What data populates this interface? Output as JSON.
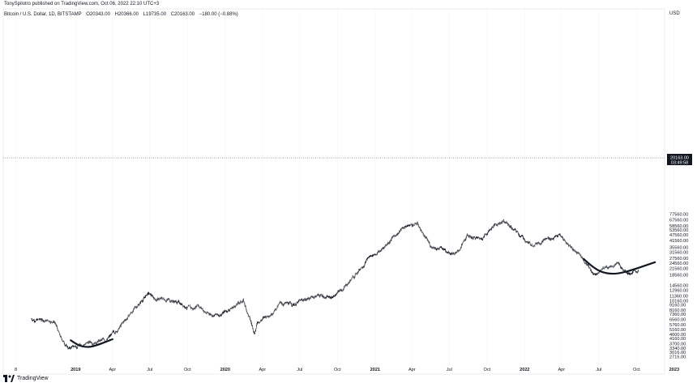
{
  "header": {
    "publisher_line": "TonySpilotro published on TradingView.com, Oct 06, 2022 22:10 UTC+3"
  },
  "symbol": {
    "name": "Bitcoin / U.S. Dollar, 1D, BITSTAMP",
    "open": "O20343.00",
    "high": "H20366.00",
    "low": "L19735.00",
    "close": "C20163.00",
    "change": "−180.00 (−0.88%)"
  },
  "footer": {
    "brand": "TradingView"
  },
  "colors": {
    "line": "#131722",
    "axis_text": "#131722",
    "grid": "#f0f3fa",
    "price_line": "#787b86"
  },
  "chart_data": {
    "type": "line",
    "title": "",
    "ylabel": "USD",
    "y_scale": "log",
    "ylim": [
      2500,
      85000
    ],
    "y_ticks": [
      "77560.00",
      "67560.00",
      "58560.00",
      "53560.00",
      "47560.00",
      "41560.00",
      "35560.00",
      "31560.00",
      "27560.00",
      "24560.00",
      "21560.00",
      "18560.00",
      "14560.00",
      "12960.00",
      "11360.00",
      "10160.00",
      "9160.00",
      "8160.00",
      "7360.00",
      "6560.00",
      "5760.00",
      "5160.00",
      "4600.00",
      "4160.00",
      "3700.00",
      "3340.00",
      "3016.00",
      "2715.00"
    ],
    "x_ticks": [
      "8",
      "2019",
      "Apr",
      "Jul",
      "Oct",
      "2020",
      "Apr",
      "Jul",
      "Oct",
      "2021",
      "Apr",
      "Jul",
      "Oct",
      "2022",
      "Apr",
      "Jul",
      "Oct",
      "2023"
    ],
    "current_price_label": "20163.00",
    "countdown_label": "03:49:58",
    "series": [
      {
        "x": [
          "2018-09",
          "2018-10",
          "2018-11-10",
          "2018-11-25",
          "2018-12-15",
          "2019-01",
          "2019-02",
          "2019-03",
          "2019-04",
          "2019-05",
          "2019-06-26",
          "2019-07",
          "2019-08",
          "2019-09",
          "2019-10",
          "2019-10-26",
          "2019-11",
          "2019-12",
          "2020-01",
          "2020-02-14",
          "2020-03-12",
          "2020-03-20",
          "2020-04",
          "2020-05",
          "2020-06",
          "2020-07",
          "2020-08",
          "2020-09",
          "2020-10",
          "2020-11",
          "2020-12",
          "2021-01",
          "2021-02",
          "2021-03",
          "2021-04-14",
          "2021-05",
          "2021-06",
          "2021-07-20",
          "2021-08",
          "2021-09",
          "2021-10",
          "2021-11-10",
          "2021-12",
          "2022-01",
          "2022-02",
          "2022-03-28",
          "2022-04",
          "2022-05",
          "2022-06-18",
          "2022-07",
          "2022-08-14",
          "2022-09",
          "2022-10-06"
        ],
        "values": [
          6600,
          6400,
          6300,
          4200,
          3300,
          3650,
          3900,
          4000,
          5200,
          7500,
          12000,
          10500,
          10500,
          9500,
          8200,
          9500,
          7600,
          7200,
          8500,
          10200,
          4800,
          6200,
          7200,
          9500,
          9300,
          10500,
          11600,
          10800,
          13500,
          19000,
          28000,
          33000,
          46000,
          58000,
          62000,
          37000,
          34000,
          31000,
          46000,
          43000,
          58000,
          67000,
          49000,
          38000,
          42000,
          47000,
          39000,
          30000,
          19200,
          22000,
          24000,
          19500,
          20163
        ]
      }
    ],
    "annotations": [
      {
        "type": "curve",
        "shape": "rounded-bottom",
        "from": "2018-12-20",
        "to": "2019-04-01",
        "y_start": 4000,
        "y_bottom": 3420,
        "y_end": 4100
      },
      {
        "type": "curve",
        "shape": "rounded-bottom",
        "from": "2022-05-25",
        "to": "2022-11-15",
        "y_start": 27000,
        "y_bottom": 19100,
        "y_end": 25000
      }
    ]
  }
}
